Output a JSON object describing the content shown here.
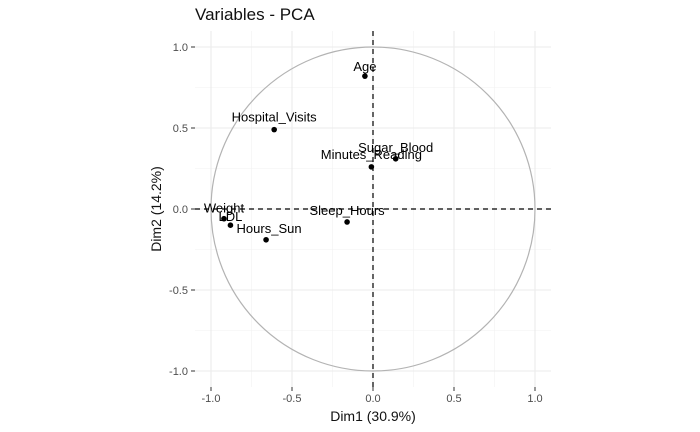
{
  "chart_data": {
    "type": "scatter",
    "title": "Variables - PCA",
    "xlabel": "Dim1 (30.9%)",
    "ylabel": "Dim2 (14.2%)",
    "xlim": [
      -1.05,
      1.05
    ],
    "ylim": [
      -1.05,
      1.05
    ],
    "x_ticks": [
      -1.0,
      -0.5,
      0.0,
      0.5,
      1.0
    ],
    "x_tick_labels": [
      "-1.0",
      "-0.5",
      "0.0",
      "0.5",
      "1.0"
    ],
    "y_ticks": [
      -1.0,
      -0.5,
      0.0,
      0.5,
      1.0
    ],
    "y_tick_labels": [
      "-1.0",
      "-0.5",
      "0.0",
      "0.5",
      "1.0"
    ],
    "grid": true,
    "correlation_circle": true,
    "reference_lines": [
      0,
      0
    ],
    "point_color": "#000000",
    "circle_color": "#b3b3b3",
    "points": [
      {
        "label": "Age",
        "x": -0.05,
        "y": 0.82
      },
      {
        "label": "Hospital_Visits",
        "x": -0.61,
        "y": 0.49
      },
      {
        "label": "Sugar_Blood",
        "x": 0.14,
        "y": 0.31
      },
      {
        "label": "Minutes_Reading",
        "x": -0.01,
        "y": 0.26
      },
      {
        "label": "Weight",
        "x": -0.92,
        "y": -0.06
      },
      {
        "label": "LDL",
        "x": -0.88,
        "y": -0.1
      },
      {
        "label": "Hours_Sun",
        "x": -0.66,
        "y": -0.19
      },
      {
        "label": "Sleep_Hours",
        "x": -0.16,
        "y": -0.08
      }
    ]
  }
}
